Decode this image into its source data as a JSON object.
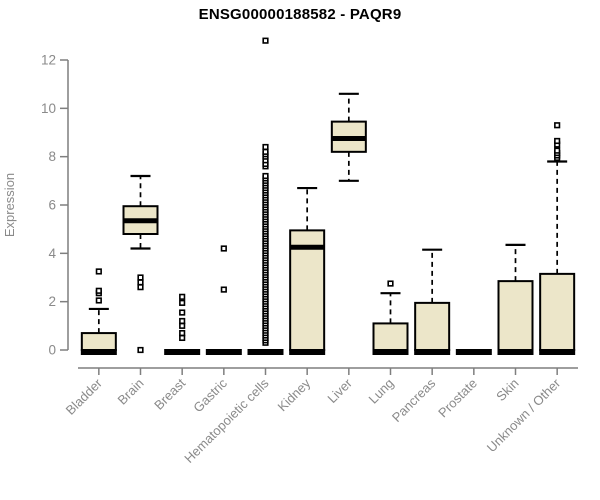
{
  "title": "ENSG00000188582 - PAQR9",
  "colors": {
    "box_fill": "#ece6c9",
    "box_border": "#000000",
    "median": "#000000",
    "whisker": "#000000",
    "axis_line": "#7f7f7f",
    "axis_text": "#8a8a8a",
    "title_text": "#000000",
    "background": "#ffffff"
  },
  "chart_data": {
    "type": "boxplot",
    "title": "ENSG00000188582 - PAQR9",
    "xlabel": "",
    "ylabel": "Expression",
    "ylim": [
      0,
      12
    ],
    "yticks": [
      0,
      2,
      4,
      6,
      8,
      10,
      12
    ],
    "grid": false,
    "categories": [
      "Bladder",
      "Brain",
      "Breast",
      "Gastric",
      "Hematopoietic cells",
      "Kidney",
      "Liver",
      "Lung",
      "Pancreas",
      "Prostate",
      "Skin",
      "Unknown / Other"
    ],
    "series": [
      {
        "name": "Bladder",
        "low": 0,
        "q1": 0,
        "median": 0,
        "q3": 0.7,
        "high": 1.7,
        "zero_bar": true,
        "outliers": [
          2.05,
          2.35,
          2.45,
          3.25
        ]
      },
      {
        "name": "Brain",
        "low": 4.2,
        "q1": 4.8,
        "median": 5.35,
        "q3": 5.95,
        "high": 7.2,
        "zero_bar": false,
        "outliers": [
          0,
          2.6,
          2.8,
          3.0
        ]
      },
      {
        "name": "Breast",
        "low": 0,
        "q1": 0,
        "median": 0,
        "q3": 0,
        "high": 0,
        "zero_bar": true,
        "outliers": [
          0.5,
          0.7,
          1.0,
          1.2,
          1.55,
          1.95,
          2.2
        ]
      },
      {
        "name": "Gastric",
        "low": 0,
        "q1": 0,
        "median": 0,
        "q3": 0,
        "high": 0,
        "zero_bar": true,
        "outliers": [
          2.5,
          4.2
        ]
      },
      {
        "name": "Hematopoietic cells",
        "low": 0,
        "q1": 0,
        "median": 0,
        "q3": 0,
        "high": 0,
        "zero_bar": true,
        "outliers": [
          0.3,
          0.4,
          0.5,
          0.6,
          0.7,
          0.8,
          0.9,
          1.0,
          1.1,
          1.2,
          1.3,
          1.4,
          1.5,
          1.6,
          1.7,
          1.8,
          1.9,
          2.0,
          2.1,
          2.2,
          2.3,
          2.4,
          2.5,
          2.6,
          2.7,
          2.8,
          2.9,
          3.0,
          3.1,
          3.2,
          3.3,
          3.4,
          3.5,
          3.6,
          3.7,
          3.8,
          3.9,
          4.0,
          4.1,
          4.2,
          4.3,
          4.4,
          4.5,
          4.6,
          4.7,
          4.8,
          4.9,
          5.0,
          5.1,
          5.2,
          5.3,
          5.4,
          5.5,
          5.6,
          5.7,
          5.8,
          5.9,
          6.0,
          6.1,
          6.2,
          6.3,
          6.4,
          6.5,
          6.6,
          6.7,
          6.8,
          6.9,
          7.0,
          7.1,
          7.2,
          7.6,
          7.7,
          7.85,
          8.0,
          8.1,
          8.2,
          8.4,
          12.8
        ]
      },
      {
        "name": "Kidney",
        "low": 0,
        "q1": 0,
        "median": 4.25,
        "q3": 4.95,
        "high": 6.7,
        "zero_bar": true,
        "outliers": []
      },
      {
        "name": "Liver",
        "low": 7.0,
        "q1": 8.2,
        "median": 8.75,
        "q3": 9.45,
        "high": 10.6,
        "zero_bar": false,
        "outliers": []
      },
      {
        "name": "Lung",
        "low": 0,
        "q1": 0,
        "median": 0,
        "q3": 1.1,
        "high": 2.35,
        "zero_bar": true,
        "outliers": [
          2.75
        ]
      },
      {
        "name": "Pancreas",
        "low": 0,
        "q1": 0,
        "median": 0,
        "q3": 1.95,
        "high": 4.15,
        "zero_bar": true,
        "outliers": []
      },
      {
        "name": "Prostate",
        "low": 0,
        "q1": 0,
        "median": 0,
        "q3": 0,
        "high": 0,
        "zero_bar": true,
        "outliers": []
      },
      {
        "name": "Skin",
        "low": 0,
        "q1": 0,
        "median": 0,
        "q3": 2.85,
        "high": 4.35,
        "zero_bar": true,
        "outliers": []
      },
      {
        "name": "Unknown / Other",
        "low": 0,
        "q1": 0,
        "median": 0,
        "q3": 3.15,
        "high": 7.8,
        "zero_bar": true,
        "outliers": [
          7.95,
          8.05,
          8.15,
          8.25,
          8.5,
          8.65,
          9.3
        ]
      }
    ]
  }
}
